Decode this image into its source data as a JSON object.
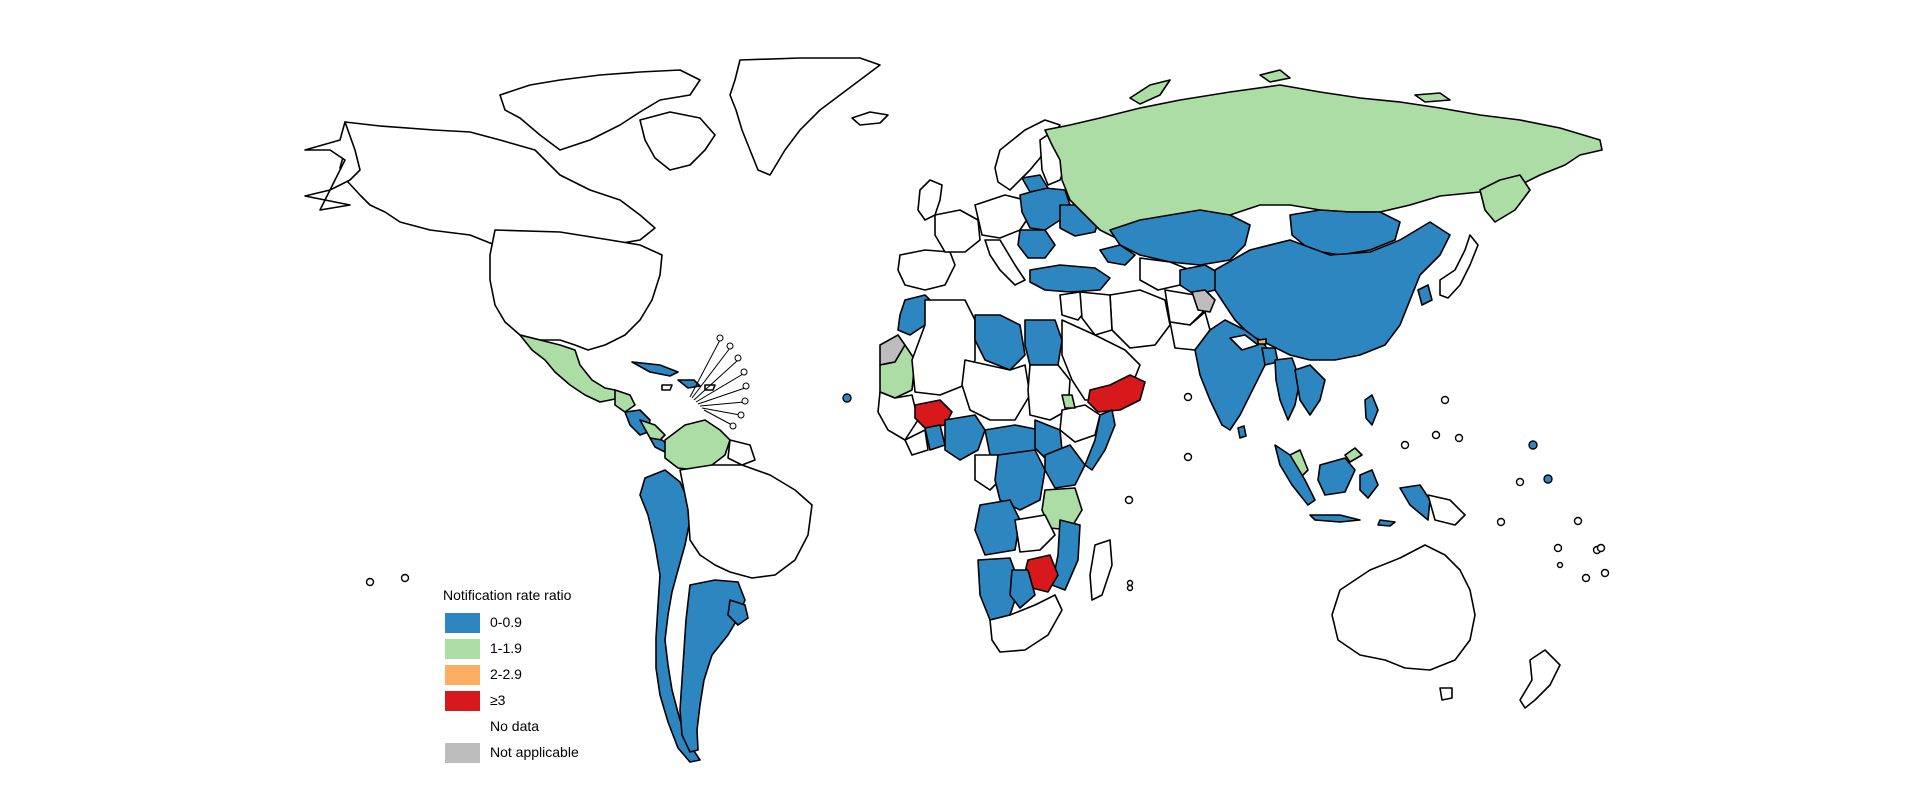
{
  "legend": {
    "title": "Notification rate ratio",
    "items": [
      {
        "key": "blue",
        "label": "0-0.9",
        "color": "#2e86c1"
      },
      {
        "key": "green",
        "label": "1-1.9",
        "color": "#abdda4"
      },
      {
        "key": "orange",
        "label": "2-2.9",
        "color": "#fdae61"
      },
      {
        "key": "red",
        "label": "≥3",
        "color": "#d7191c"
      },
      {
        "key": "nodata",
        "label": "No data",
        "color": "#ffffff"
      },
      {
        "key": "na",
        "label": "Not applicable",
        "color": "#bdbdbd"
      }
    ]
  },
  "colors": {
    "blue": "#2e86c1",
    "green": "#abdda4",
    "orange": "#fdae61",
    "red": "#d7191c",
    "nodata": "#ffffff",
    "na": "#bdbdbd",
    "border": "#000000"
  }
}
